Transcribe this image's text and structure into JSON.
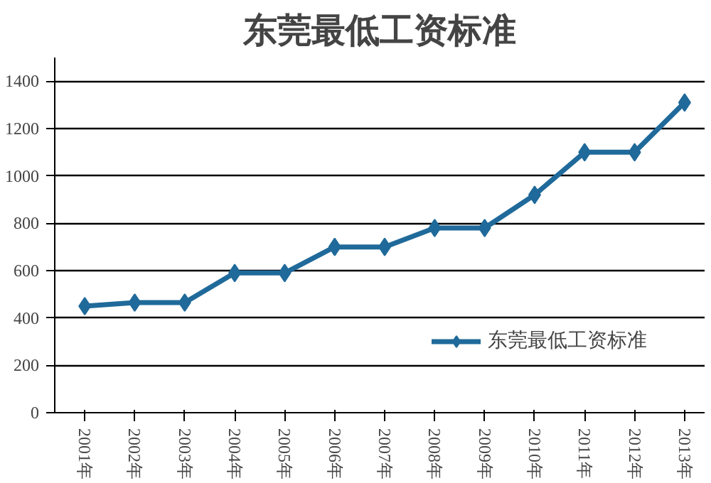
{
  "chart_data": {
    "type": "line",
    "title": "东莞最低工资标准",
    "categories": [
      "2001年",
      "2002年",
      "2003年",
      "2004年",
      "2005年",
      "2006年",
      "2007年",
      "2008年",
      "2009年",
      "2010年",
      "2011年",
      "2012年",
      "2013年"
    ],
    "series": [
      {
        "name": "东莞最低工资标准",
        "color": "#1f6a9a",
        "values": [
          450,
          465,
          465,
          590,
          590,
          700,
          700,
          780,
          780,
          920,
          1100,
          1100,
          1310
        ]
      }
    ],
    "ylim": [
      0,
      1500
    ],
    "yticks": [
      0,
      200,
      400,
      600,
      800,
      1000,
      1200,
      1400
    ],
    "grid": "y",
    "legend": "bottom right",
    "marker": "diamond",
    "line_style": "solid"
  }
}
